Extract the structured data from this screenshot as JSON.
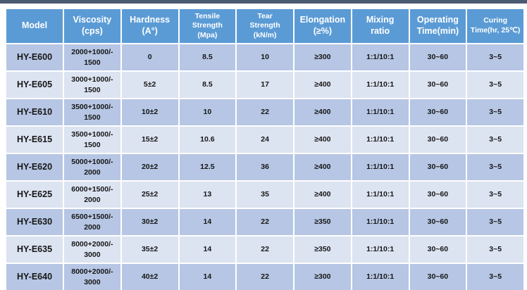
{
  "page": {
    "top_bar_color": "#4a5b72"
  },
  "table": {
    "colors": {
      "header_bg": "#5b9bd5",
      "row_dark": "#b6c6e4",
      "row_light": "#dce3f1",
      "border": "#ffffff",
      "header_text": "#ffffff",
      "cell_text": "#161616"
    },
    "columns": [
      {
        "key": "model",
        "label": "Model"
      },
      {
        "key": "viscosity",
        "label": "Viscosity\n(cps)"
      },
      {
        "key": "hardness",
        "label": "Hardness\n(A°)"
      },
      {
        "key": "tensile",
        "label": "Tensile\nStrength\n(Mpa)"
      },
      {
        "key": "tear",
        "label": "Tear\nStrength\n(kN/m)"
      },
      {
        "key": "elongation",
        "label": "Elongation\n(≥%)"
      },
      {
        "key": "mixing",
        "label": "Mixing\nratio"
      },
      {
        "key": "operating",
        "label": "Operating\nTime(min)"
      },
      {
        "key": "curing",
        "label": "Curing\nTime(hr, 25℃)"
      }
    ],
    "rows": [
      {
        "model": "HY-E600",
        "viscosity": "2000+1000/-\n1500",
        "hardness": "0",
        "tensile": "8.5",
        "tear": "10",
        "elongation": "≥300",
        "mixing": "1:1/10:1",
        "operating": "30~60",
        "curing": "3~5"
      },
      {
        "model": "HY-E605",
        "viscosity": "3000+1000/-\n1500",
        "hardness": "5±2",
        "tensile": "8.5",
        "tear": "17",
        "elongation": "≥400",
        "mixing": "1:1/10:1",
        "operating": "30~60",
        "curing": "3~5"
      },
      {
        "model": "HY-E610",
        "viscosity": "3500+1000/-\n1500",
        "hardness": "10±2",
        "tensile": "10",
        "tear": "22",
        "elongation": "≥400",
        "mixing": "1:1/10:1",
        "operating": "30~60",
        "curing": "3~5"
      },
      {
        "model": "HY-E615",
        "viscosity": "3500+1000/-\n1500",
        "hardness": "15±2",
        "tensile": "10.6",
        "tear": "24",
        "elongation": "≥400",
        "mixing": "1:1/10:1",
        "operating": "30~60",
        "curing": "3~5"
      },
      {
        "model": "HY-E620",
        "viscosity": "5000+1000/-\n2000",
        "hardness": "20±2",
        "tensile": "12.5",
        "tear": "36",
        "elongation": "≥400",
        "mixing": "1:1/10:1",
        "operating": "30~60",
        "curing": "3~5"
      },
      {
        "model": "HY-E625",
        "viscosity": "6000+1500/-\n2000",
        "hardness": "25±2",
        "tensile": "13",
        "tear": "35",
        "elongation": "≥400",
        "mixing": "1:1/10:1",
        "operating": "30~60",
        "curing": "3~5"
      },
      {
        "model": "HY-E630",
        "viscosity": "6500+1500/-\n2000",
        "hardness": "30±2",
        "tensile": "14",
        "tear": "22",
        "elongation": "≥350",
        "mixing": "1:1/10:1",
        "operating": "30~60",
        "curing": "3~5"
      },
      {
        "model": "HY-E635",
        "viscosity": "8000+2000/-\n3000",
        "hardness": "35±2",
        "tensile": "14",
        "tear": "22",
        "elongation": "≥350",
        "mixing": "1:1/10:1",
        "operating": "30~60",
        "curing": "3~5"
      },
      {
        "model": "HY-E640",
        "viscosity": "8000+2000/-\n3000",
        "hardness": "40±2",
        "tensile": "14",
        "tear": "22",
        "elongation": "≥300",
        "mixing": "1:1/10:1",
        "operating": "30~60",
        "curing": "3~5"
      }
    ]
  }
}
